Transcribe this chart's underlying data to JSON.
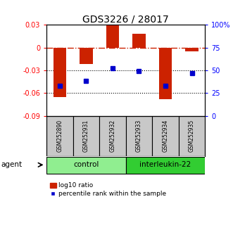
{
  "title": "GDS3226 / 28017",
  "samples": [
    "GSM252890",
    "GSM252931",
    "GSM252932",
    "GSM252933",
    "GSM252934",
    "GSM252935"
  ],
  "log10_ratio": [
    -0.065,
    -0.022,
    0.03,
    0.018,
    -0.068,
    -0.005
  ],
  "percentile_rank": [
    33,
    38,
    52,
    49,
    33,
    47
  ],
  "groups": [
    {
      "label": "control",
      "indices": [
        0,
        1,
        2
      ],
      "color": "#90EE90"
    },
    {
      "label": "interleukin-22",
      "indices": [
        3,
        4,
        5
      ],
      "color": "#32CD32"
    }
  ],
  "ylim_left": [
    -0.09,
    0.03
  ],
  "ylim_right": [
    0,
    100
  ],
  "yticks_left": [
    0.03,
    0.0,
    -0.03,
    -0.06,
    -0.09
  ],
  "ytick_labels_left": [
    "0.03",
    "0",
    "-0.03",
    "-0.06",
    "-0.09"
  ],
  "yticks_right": [
    100,
    75,
    50,
    25,
    0
  ],
  "ytick_labels_right": [
    "100%",
    "75",
    "50",
    "25",
    "0"
  ],
  "bar_color": "#CC2200",
  "dot_color": "#0000CC",
  "hline_color": "#CC2200",
  "dotline_color": "black",
  "bar_width": 0.5,
  "legend_bar_label": "log10 ratio",
  "legend_dot_label": "percentile rank within the sample",
  "agent_label": "agent",
  "sample_bg_color": "#C8C8C8"
}
